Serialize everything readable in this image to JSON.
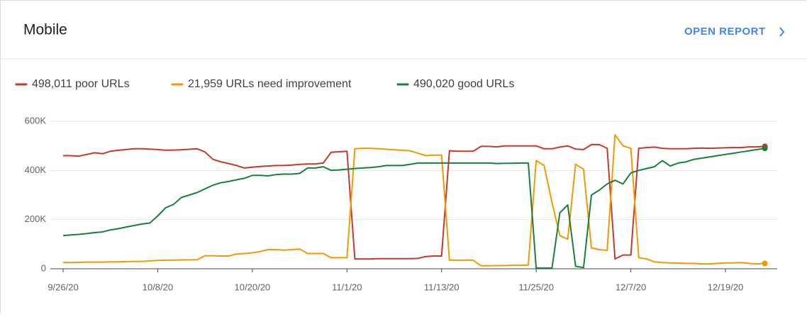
{
  "header": {
    "title": "Mobile",
    "action": "OPEN REPORT"
  },
  "chart_data": {
    "type": "line",
    "x": [
      "9/26/20",
      "9/27/20",
      "9/28/20",
      "9/29/20",
      "9/30/20",
      "10/1/20",
      "10/2/20",
      "10/3/20",
      "10/4/20",
      "10/5/20",
      "10/6/20",
      "10/7/20",
      "10/8/20",
      "10/9/20",
      "10/10/20",
      "10/11/20",
      "10/12/20",
      "10/13/20",
      "10/14/20",
      "10/15/20",
      "10/16/20",
      "10/17/20",
      "10/18/20",
      "10/19/20",
      "10/20/20",
      "10/21/20",
      "10/22/20",
      "10/23/20",
      "10/24/20",
      "10/25/20",
      "10/26/20",
      "10/27/20",
      "10/28/20",
      "10/29/20",
      "10/30/20",
      "10/31/20",
      "11/1/20",
      "11/2/20",
      "11/3/20",
      "11/4/20",
      "11/5/20",
      "11/6/20",
      "11/7/20",
      "11/8/20",
      "11/9/20",
      "11/10/20",
      "11/11/20",
      "11/12/20",
      "11/13/20",
      "11/14/20",
      "11/15/20",
      "11/16/20",
      "11/17/20",
      "11/18/20",
      "11/19/20",
      "11/20/20",
      "11/21/20",
      "11/22/20",
      "11/23/20",
      "11/24/20",
      "11/25/20",
      "11/26/20",
      "11/27/20",
      "11/28/20",
      "11/29/20",
      "11/30/20",
      "12/1/20",
      "12/2/20",
      "12/3/20",
      "12/4/20",
      "12/5/20",
      "12/6/20",
      "12/7/20",
      "12/8/20",
      "12/9/20",
      "12/10/20",
      "12/11/20",
      "12/12/20",
      "12/13/20",
      "12/14/20",
      "12/15/20",
      "12/16/20",
      "12/17/20",
      "12/18/20",
      "12/19/20",
      "12/20/20",
      "12/21/20",
      "12/22/20",
      "12/23/20",
      "12/24/20"
    ],
    "xticks": [
      0,
      12,
      24,
      36,
      48,
      60,
      72,
      84
    ],
    "series": [
      {
        "name": "498,011 poor URLs",
        "color": "#c5392b",
        "values": [
          460000,
          460000,
          458000,
          465000,
          472000,
          468000,
          478000,
          482000,
          485000,
          488000,
          488000,
          487000,
          485000,
          482000,
          483000,
          484000,
          486000,
          488000,
          475000,
          445000,
          435000,
          428000,
          420000,
          410000,
          413000,
          416000,
          418000,
          420000,
          420000,
          422000,
          425000,
          426000,
          426000,
          430000,
          474000,
          476000,
          478000,
          40000,
          40000,
          40000,
          41000,
          41000,
          41000,
          41000,
          41000,
          42000,
          50000,
          52000,
          52000,
          480000,
          478000,
          478000,
          478000,
          498000,
          498000,
          496000,
          500000,
          500000,
          500000,
          500000,
          500000,
          488000,
          488000,
          495000,
          500000,
          487000,
          485000,
          505000,
          505000,
          490000,
          40000,
          56000,
          56000,
          490000,
          493000,
          495000,
          490000,
          488000,
          488000,
          488000,
          490000,
          491000,
          490000,
          491000,
          492000,
          493000,
          493000,
          496000,
          496000,
          498011
        ]
      },
      {
        "name": "21,959 URLs need improvement",
        "color": "#f29900",
        "values": [
          25000,
          25000,
          26000,
          27000,
          27000,
          27000,
          28000,
          28000,
          29000,
          30000,
          30000,
          32000,
          34000,
          35000,
          35000,
          36000,
          36000,
          37000,
          53000,
          53000,
          52000,
          52000,
          60000,
          62000,
          65000,
          70000,
          78000,
          78000,
          76000,
          78000,
          80000,
          62000,
          62000,
          62000,
          45000,
          45000,
          45000,
          488000,
          490000,
          490000,
          488000,
          486000,
          484000,
          482000,
          480000,
          470000,
          460000,
          462000,
          462000,
          35000,
          35000,
          35000,
          35000,
          12000,
          12000,
          13000,
          13000,
          14000,
          14000,
          15000,
          440000,
          420000,
          270000,
          135000,
          120000,
          425000,
          405000,
          85000,
          78000,
          75000,
          545000,
          500000,
          490000,
          45000,
          40000,
          28000,
          25000,
          24000,
          23000,
          22000,
          22000,
          20000,
          20000,
          22000,
          24000,
          24000,
          25000,
          22000,
          20000,
          21959
        ]
      },
      {
        "name": "490,020 good URLs",
        "color": "#188038",
        "values": [
          135000,
          138000,
          140000,
          143000,
          147000,
          150000,
          158000,
          163000,
          170000,
          176000,
          182000,
          186000,
          215000,
          248000,
          262000,
          290000,
          300000,
          310000,
          325000,
          340000,
          350000,
          355000,
          362000,
          368000,
          380000,
          380000,
          378000,
          383000,
          385000,
          385000,
          388000,
          410000,
          410000,
          415000,
          400000,
          402000,
          405000,
          408000,
          410000,
          412000,
          415000,
          420000,
          420000,
          420000,
          425000,
          430000,
          430000,
          430000,
          430000,
          430000,
          430000,
          430000,
          430000,
          430000,
          430000,
          428000,
          429000,
          429000,
          430000,
          430000,
          3000,
          3000,
          3000,
          228000,
          260000,
          10000,
          5000,
          300000,
          320000,
          345000,
          360000,
          345000,
          390000,
          400000,
          408000,
          415000,
          440000,
          418000,
          430000,
          435000,
          445000,
          450000,
          455000,
          460000,
          465000,
          470000,
          475000,
          480000,
          485000,
          490020
        ]
      }
    ],
    "ylim": [
      0,
      600000
    ],
    "yticks": [
      {
        "value": 0,
        "label": "0"
      },
      {
        "value": 200000,
        "label": "200K"
      },
      {
        "value": 400000,
        "label": "400K"
      },
      {
        "value": 600000,
        "label": "600K"
      }
    ],
    "grid": true
  }
}
